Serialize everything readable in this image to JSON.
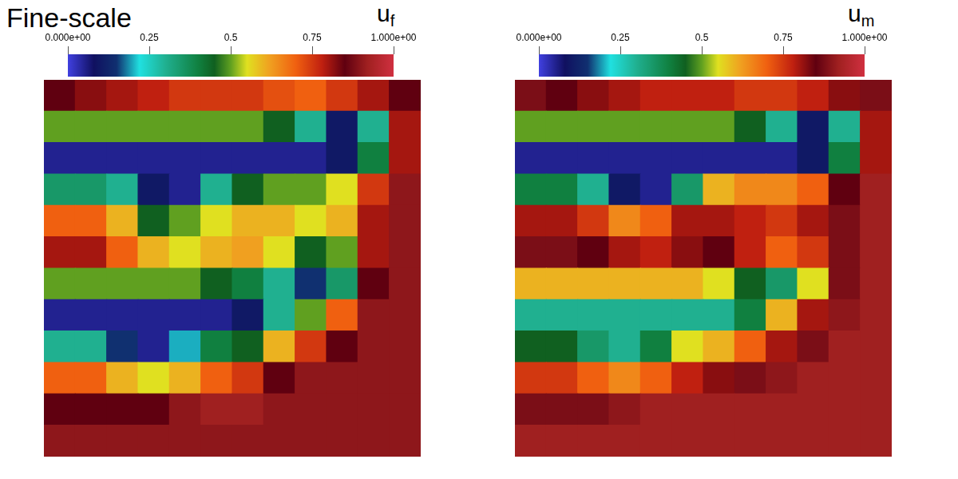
{
  "title": "Fine-scale",
  "chart_data": [
    {
      "type": "heatmap",
      "title": "u",
      "title_subscript": "f",
      "tick_labels": false,
      "cells": [
        [
          0.85,
          0.82,
          0.8,
          0.78,
          0.75,
          0.75,
          0.75,
          0.72,
          0.7,
          0.75,
          0.8,
          0.85
        ],
        [
          0.5,
          0.5,
          0.5,
          0.5,
          0.5,
          0.5,
          0.5,
          0.45,
          0.3,
          0.1,
          0.3,
          0.8
        ],
        [
          0.05,
          0.05,
          0.05,
          0.05,
          0.05,
          0.05,
          0.05,
          0.05,
          0.05,
          0.1,
          0.4,
          0.8
        ],
        [
          0.35,
          0.35,
          0.3,
          0.1,
          0.05,
          0.3,
          0.45,
          0.5,
          0.5,
          0.55,
          0.75,
          0.9
        ],
        [
          0.7,
          0.7,
          0.6,
          0.45,
          0.5,
          0.55,
          0.6,
          0.6,
          0.55,
          0.6,
          0.8,
          0.9
        ],
        [
          0.8,
          0.8,
          0.7,
          0.6,
          0.55,
          0.6,
          0.62,
          0.55,
          0.45,
          0.5,
          0.8,
          0.9
        ],
        [
          0.5,
          0.5,
          0.5,
          0.5,
          0.5,
          0.45,
          0.4,
          0.3,
          0.15,
          0.35,
          0.85,
          0.9
        ],
        [
          0.05,
          0.05,
          0.05,
          0.05,
          0.05,
          0.05,
          0.1,
          0.3,
          0.5,
          0.7,
          0.9,
          0.9
        ],
        [
          0.3,
          0.3,
          0.15,
          0.05,
          0.2,
          0.4,
          0.45,
          0.6,
          0.75,
          0.85,
          0.9,
          0.9
        ],
        [
          0.7,
          0.7,
          0.6,
          0.55,
          0.6,
          0.7,
          0.75,
          0.85,
          0.9,
          0.9,
          0.9,
          0.9
        ],
        [
          0.85,
          0.85,
          0.85,
          0.85,
          0.9,
          0.92,
          0.92,
          0.9,
          0.9,
          0.9,
          0.9,
          0.9
        ],
        [
          0.9,
          0.9,
          0.9,
          0.9,
          0.9,
          0.9,
          0.9,
          0.9,
          0.9,
          0.9,
          0.9,
          0.9
        ]
      ],
      "colorbar": {
        "range": [
          0,
          1
        ],
        "ticks": [
          {
            "value": 0,
            "label": "0.000e+00"
          },
          0.25,
          0.5,
          0.75,
          {
            "value": 1,
            "label": "1.000e+00"
          }
        ]
      }
    },
    {
      "type": "heatmap",
      "title": "u",
      "title_subscript": "m",
      "tick_labels": false,
      "cells": [
        [
          0.88,
          0.85,
          0.82,
          0.8,
          0.78,
          0.78,
          0.78,
          0.75,
          0.75,
          0.78,
          0.82,
          0.88
        ],
        [
          0.5,
          0.5,
          0.5,
          0.5,
          0.5,
          0.5,
          0.5,
          0.45,
          0.3,
          0.1,
          0.3,
          0.8
        ],
        [
          0.05,
          0.05,
          0.05,
          0.05,
          0.05,
          0.05,
          0.05,
          0.05,
          0.05,
          0.1,
          0.4,
          0.8
        ],
        [
          0.4,
          0.4,
          0.3,
          0.1,
          0.05,
          0.35,
          0.6,
          0.65,
          0.65,
          0.7,
          0.85,
          0.92
        ],
        [
          0.8,
          0.8,
          0.75,
          0.65,
          0.7,
          0.8,
          0.8,
          0.78,
          0.75,
          0.8,
          0.88,
          0.92
        ],
        [
          0.88,
          0.88,
          0.85,
          0.8,
          0.78,
          0.82,
          0.85,
          0.78,
          0.7,
          0.75,
          0.88,
          0.92
        ],
        [
          0.6,
          0.6,
          0.6,
          0.6,
          0.6,
          0.6,
          0.55,
          0.45,
          0.35,
          0.55,
          0.88,
          0.92
        ],
        [
          0.3,
          0.3,
          0.3,
          0.3,
          0.3,
          0.3,
          0.3,
          0.4,
          0.6,
          0.8,
          0.9,
          0.92
        ],
        [
          0.45,
          0.45,
          0.35,
          0.3,
          0.4,
          0.55,
          0.6,
          0.7,
          0.8,
          0.88,
          0.92,
          0.92
        ],
        [
          0.75,
          0.75,
          0.7,
          0.65,
          0.7,
          0.78,
          0.82,
          0.88,
          0.9,
          0.92,
          0.92,
          0.92
        ],
        [
          0.88,
          0.88,
          0.88,
          0.9,
          0.92,
          0.92,
          0.92,
          0.92,
          0.92,
          0.92,
          0.92,
          0.92
        ],
        [
          0.92,
          0.92,
          0.92,
          0.92,
          0.92,
          0.92,
          0.92,
          0.92,
          0.92,
          0.92,
          0.92,
          0.92
        ]
      ],
      "colorbar": {
        "range": [
          0,
          1
        ],
        "ticks": [
          {
            "value": 0,
            "label": "0.000e+00"
          },
          0.25,
          0.5,
          0.75,
          {
            "value": 1,
            "label": "1.000e+00"
          }
        ]
      }
    }
  ]
}
